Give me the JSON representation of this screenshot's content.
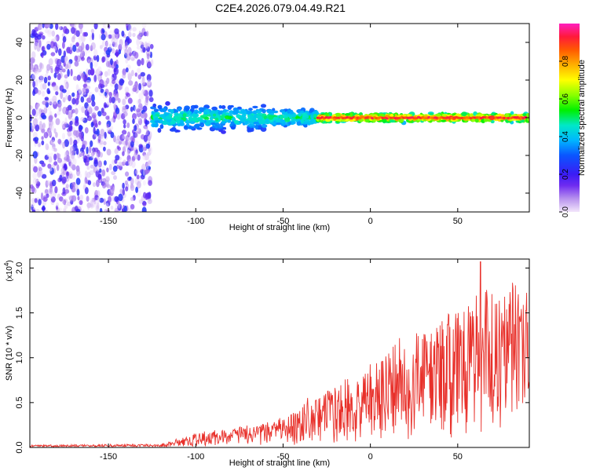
{
  "title": "C2E4.2026.079.04.49.R21",
  "chart_data": [
    {
      "type": "heatmap",
      "title": "C2E4.2026.079.04.49.R21",
      "xlabel": "Height of straight line (km)",
      "ylabel": "Frequency (Hz)",
      "xlim": [
        -195,
        91
      ],
      "ylim": [
        -50,
        50
      ],
      "xticks": [
        -150,
        -100,
        -50,
        0,
        50
      ],
      "yticks": [
        -40,
        -20,
        0,
        20,
        40
      ],
      "colorbar": {
        "label": "Normalized spectral amplitude",
        "range": [
          0,
          1
        ],
        "ticks": [
          0.0,
          0.2,
          0.4,
          0.6,
          0.8
        ],
        "tick_labels": [
          "0.0",
          "0.2",
          "0.4",
          "0.6",
          "0.8"
        ]
      },
      "description_regions": [
        {
          "x_range": [
            -195,
            -125
          ],
          "freq_spread": 50,
          "amplitude": [
            0.0,
            0.25
          ]
        },
        {
          "x_range": [
            -125,
            -60
          ],
          "freq_center": 0,
          "freq_spread": 6,
          "amplitude": [
            0.2,
            0.55
          ]
        },
        {
          "x_range": [
            -60,
            -30
          ],
          "freq_center": 0,
          "freq_spread": 4,
          "amplitude": [
            0.25,
            0.55
          ]
        },
        {
          "x_range": [
            -30,
            91
          ],
          "freq_center": 0,
          "freq_spread": 2,
          "amplitude": [
            0.35,
            0.95
          ]
        }
      ]
    },
    {
      "type": "line",
      "xlabel": "Height of straight line (km)",
      "ylabel": "SNR (10 * v/v)",
      "y_multiplier": "(x10^4)",
      "y_multiplier_base": "(x10",
      "y_multiplier_exp": "4",
      "y_multiplier_close": ")",
      "xlim": [
        -195,
        91
      ],
      "ylim": [
        0,
        2.1
      ],
      "xticks": [
        -150,
        -100,
        -50,
        0,
        50
      ],
      "yticks": [
        0.0,
        0.5,
        1.0,
        1.5,
        2.0
      ],
      "ytick_labels": [
        "0.0",
        "0.5",
        "1.0",
        "1.5",
        "2.0"
      ],
      "series": [
        {
          "name": "SNR",
          "color": "#e8312b",
          "envelope_x": [
            -195,
            -120,
            -110,
            -100,
            -80,
            -60,
            -50,
            -40,
            -30,
            -20,
            -10,
            0,
            10,
            20,
            30,
            40,
            50,
            60,
            70,
            80,
            91
          ],
          "envelope_y": [
            0.02,
            0.03,
            0.08,
            0.12,
            0.18,
            0.22,
            0.3,
            0.38,
            0.48,
            0.58,
            0.65,
            0.72,
            0.85,
            0.95,
            1.05,
            1.15,
            1.25,
            1.35,
            1.4,
            1.45,
            1.5
          ],
          "peak_x": 63,
          "peak_y": 2.07
        }
      ]
    }
  ]
}
